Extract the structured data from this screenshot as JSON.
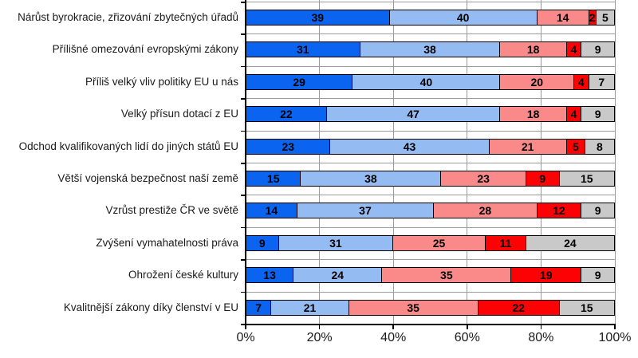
{
  "chart_data": {
    "type": "bar",
    "orientation": "horizontal-stacked",
    "categories": [
      "Nárůst byrokracie, zřizování zbytečných úřadů",
      "Přílišné omezování evropskými zákony",
      "Příliš velký vliv politiky EU u nás",
      "Velký přísun dotací z EU",
      "Odchod kvalifikovaných lidí do jiných států EU",
      "Větší vojenská bezpečnost naší země",
      "Vzrůst prestiže ČR ve světě",
      "Zvýšení vymahatelnosti práva",
      "Ohrožení české kultury",
      "Kvalitnější zákony díky členství v EU"
    ],
    "series": [
      {
        "name": "segment-dark-blue",
        "color": "#0a64f0",
        "values": [
          39,
          31,
          29,
          22,
          23,
          15,
          14,
          9,
          13,
          7
        ]
      },
      {
        "name": "segment-light-blue",
        "color": "#94bbf2",
        "values": [
          40,
          38,
          40,
          47,
          43,
          38,
          37,
          31,
          24,
          21
        ]
      },
      {
        "name": "segment-pink",
        "color": "#fa8a8a",
        "values": [
          14,
          18,
          20,
          18,
          21,
          23,
          28,
          25,
          35,
          35
        ]
      },
      {
        "name": "segment-red",
        "color": "#fc0204",
        "values": [
          2,
          4,
          4,
          4,
          5,
          9,
          12,
          11,
          19,
          22
        ]
      },
      {
        "name": "segment-gray",
        "color": "#c9c9c9",
        "values": [
          5,
          9,
          7,
          9,
          8,
          15,
          9,
          24,
          9,
          15
        ]
      }
    ],
    "x_ticks": [
      "0%",
      "20%",
      "40%",
      "60%",
      "80%",
      "100%"
    ],
    "xlim": [
      0,
      100
    ],
    "grid": true,
    "legend": "none"
  },
  "colors": {
    "background": "#ffffff",
    "grid": "#9c9c9c",
    "axis": "#000000",
    "bar_border": "#000000",
    "category_text": "#1a1a1a",
    "value_text": "#000000"
  }
}
